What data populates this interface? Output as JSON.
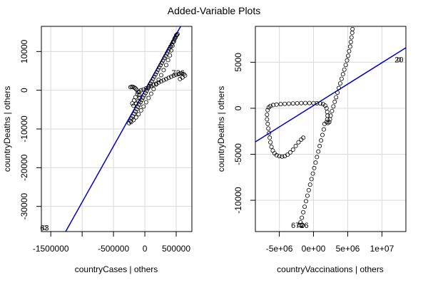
{
  "title": "Added-Variable Plots",
  "colors": {
    "fit_line": "#0000cc",
    "points": "#000000",
    "grid": "#d9d9d9",
    "frame": "#000000"
  },
  "chart_data": [
    {
      "type": "scatter",
      "xlabel": "countryCases | others",
      "ylabel": "countryDeaths | others",
      "xlim": [
        -1650000,
        750000
      ],
      "ylim": [
        -36500,
        16500
      ],
      "xticks": [
        -1500000,
        -1000000,
        -500000,
        0,
        500000
      ],
      "xtick_labels": [
        "-1500000",
        "",
        "-500000",
        "0",
        "500000"
      ],
      "yticks": [
        -30000,
        -20000,
        -10000,
        0,
        10000
      ],
      "ytick_labels": [
        "-30000",
        "-20000",
        "-10000",
        "0",
        "10000"
      ],
      "grid": true,
      "fit_line": {
        "slope": 0.0289,
        "intercept": 0
      },
      "point_labels": [
        {
          "text": "726",
          "x": 530000,
          "y": 4500
        },
        {
          "text": "63",
          "x": -1600000,
          "y": -35500
        }
      ],
      "points": [
        [
          -1600000,
          -35500
        ],
        [
          -250000,
          -8500
        ],
        [
          -230000,
          -7900
        ],
        [
          -210000,
          -7300
        ],
        [
          -190000,
          -6700
        ],
        [
          -170000,
          -6100
        ],
        [
          -150000,
          -5500
        ],
        [
          -130000,
          -4900
        ],
        [
          -110000,
          -4300
        ],
        [
          -90000,
          -3700
        ],
        [
          -70000,
          -3100
        ],
        [
          -50000,
          -2500
        ],
        [
          -30000,
          -1900
        ],
        [
          -10000,
          -1300
        ],
        [
          10000,
          -700
        ],
        [
          30000,
          -100
        ],
        [
          50000,
          500
        ],
        [
          70000,
          1100
        ],
        [
          90000,
          1700
        ],
        [
          110000,
          2300
        ],
        [
          130000,
          2900
        ],
        [
          150000,
          3500
        ],
        [
          170000,
          4100
        ],
        [
          190000,
          4700
        ],
        [
          210000,
          5300
        ],
        [
          230000,
          5900
        ],
        [
          250000,
          6500
        ],
        [
          270000,
          7100
        ],
        [
          290000,
          7700
        ],
        [
          310000,
          8300
        ],
        [
          330000,
          8900
        ],
        [
          350000,
          9500
        ],
        [
          370000,
          10100
        ],
        [
          390000,
          10700
        ],
        [
          410000,
          11300
        ],
        [
          430000,
          11900
        ],
        [
          450000,
          12500
        ],
        [
          470000,
          13100
        ],
        [
          490000,
          13700
        ],
        [
          510000,
          14300
        ],
        [
          -230000,
          800
        ],
        [
          -210000,
          900
        ],
        [
          -190000,
          850
        ],
        [
          -170000,
          700
        ],
        [
          -150000,
          500
        ],
        [
          -130000,
          100
        ],
        [
          -110000,
          -500
        ],
        [
          -90000,
          -1200
        ],
        [
          -80000,
          -2000
        ],
        [
          -100000,
          -2800
        ],
        [
          -140000,
          -3500
        ],
        [
          -180000,
          -4000
        ],
        [
          -200000,
          -3400
        ],
        [
          -170000,
          -2600
        ],
        [
          -150000,
          -1800
        ],
        [
          -120000,
          -1000
        ],
        [
          -90000,
          -400
        ],
        [
          -60000,
          0
        ],
        [
          -20000,
          200
        ],
        [
          20000,
          500
        ],
        [
          60000,
          800
        ],
        [
          100000,
          1100
        ],
        [
          140000,
          1400
        ],
        [
          180000,
          1700
        ],
        [
          220000,
          2000
        ],
        [
          260000,
          2300
        ],
        [
          300000,
          2600
        ],
        [
          340000,
          2900
        ],
        [
          380000,
          3200
        ],
        [
          420000,
          3500
        ],
        [
          460000,
          3800
        ],
        [
          500000,
          4000
        ],
        [
          540000,
          4200
        ],
        [
          580000,
          4400
        ],
        [
          620000,
          4200
        ],
        [
          640000,
          3800
        ],
        [
          600000,
          3300
        ],
        [
          560000,
          2900
        ],
        [
          520000,
          14500
        ],
        [
          500000,
          14200
        ],
        [
          480000,
          13500
        ],
        [
          460000,
          12600
        ],
        [
          440000,
          11500
        ],
        [
          420000,
          10300
        ],
        [
          400000,
          9000
        ],
        [
          370000,
          7800
        ],
        [
          340000,
          6500
        ],
        [
          300000,
          5200
        ],
        [
          260000,
          3900
        ],
        [
          220000,
          2700
        ],
        [
          180000,
          1500
        ],
        [
          140000,
          300
        ],
        [
          100000,
          -900
        ],
        [
          60000,
          -2000
        ],
        [
          20000,
          -3100
        ],
        [
          -20000,
          -4200
        ],
        [
          -60000,
          -5200
        ],
        [
          -100000,
          -6200
        ],
        [
          -140000,
          -7000
        ],
        [
          -180000,
          -7700
        ],
        [
          -220000,
          -8200
        ]
      ]
    },
    {
      "type": "scatter",
      "xlabel": "countryVaccinations | others",
      "ylabel": "countryDeaths | others",
      "xlim": [
        -8500000,
        13500000
      ],
      "ylim": [
        -13400,
        8900
      ],
      "xticks": [
        -5000000,
        0,
        5000000,
        10000000
      ],
      "xtick_labels": [
        "-5e+06",
        "0e+00",
        "5e+06",
        "1e+07"
      ],
      "yticks": [
        -10000,
        -5000,
        0,
        5000
      ],
      "ytick_labels": [
        "-10000",
        "-5000",
        "0",
        "5000"
      ],
      "grid": true,
      "fit_line": {
        "slope": 0.000465,
        "intercept": 300
      },
      "point_labels": [
        {
          "text": "20",
          "x": 12500000,
          "y": 5300
        },
        {
          "text": "6726",
          "x": -2000000,
          "y": -12700
        }
      ],
      "points": [
        [
          12500000,
          5300
        ],
        [
          -6800000,
          -1200
        ],
        [
          -6700000,
          -1700
        ],
        [
          -6600000,
          -2200
        ],
        [
          -6500000,
          -2700
        ],
        [
          -6400000,
          -3200
        ],
        [
          -6300000,
          -3700
        ],
        [
          -6150000,
          -4200
        ],
        [
          -5950000,
          -4600
        ],
        [
          -5700000,
          -4900
        ],
        [
          -5400000,
          -5100
        ],
        [
          -5000000,
          -5200
        ],
        [
          -4600000,
          -5250
        ],
        [
          -4200000,
          -5200
        ],
        [
          -3800000,
          -5050
        ],
        [
          -3400000,
          -4800
        ],
        [
          -3000000,
          -4500
        ],
        [
          -2600000,
          -4100
        ],
        [
          -2200000,
          -3700
        ],
        [
          -1800000,
          -3400
        ],
        [
          -1500000,
          -3200
        ],
        [
          -6800000,
          -700
        ],
        [
          -6700000,
          -200
        ],
        [
          -6550000,
          100
        ],
        [
          -6300000,
          250
        ],
        [
          -5900000,
          350
        ],
        [
          -5400000,
          400
        ],
        [
          -4800000,
          450
        ],
        [
          -4200000,
          480
        ],
        [
          -3600000,
          500
        ],
        [
          -3000000,
          520
        ],
        [
          -2400000,
          540
        ],
        [
          -1800000,
          560
        ],
        [
          -1200000,
          570
        ],
        [
          -600000,
          570
        ],
        [
          0,
          560
        ],
        [
          500000,
          550
        ],
        [
          1000000,
          520
        ],
        [
          1400000,
          450
        ],
        [
          1700000,
          300
        ],
        [
          1900000,
          0
        ],
        [
          2000000,
          -400
        ],
        [
          2050000,
          -800
        ],
        [
          2000000,
          -1200
        ],
        [
          1900000,
          -1500
        ],
        [
          2100000,
          -1600
        ],
        [
          2300000,
          -1500
        ],
        [
          2400000,
          -1200
        ],
        [
          2500000,
          -800
        ],
        [
          2700000,
          -300
        ],
        [
          2900000,
          200
        ],
        [
          3100000,
          700
        ],
        [
          3300000,
          1200
        ],
        [
          3500000,
          1700
        ],
        [
          3700000,
          2200
        ],
        [
          3900000,
          2700
        ],
        [
          4100000,
          3200
        ],
        [
          4300000,
          3700
        ],
        [
          4500000,
          4200
        ],
        [
          4700000,
          4700
        ],
        [
          4900000,
          5200
        ],
        [
          5050000,
          5700
        ],
        [
          5200000,
          6200
        ],
        [
          5350000,
          6700
        ],
        [
          5450000,
          7200
        ],
        [
          5550000,
          7700
        ],
        [
          5650000,
          8200
        ],
        [
          5700000,
          8600
        ],
        [
          1600000,
          -1700
        ],
        [
          1500000,
          -2300
        ],
        [
          1300000,
          -2900
        ],
        [
          1100000,
          -3500
        ],
        [
          900000,
          -4100
        ],
        [
          700000,
          -4700
        ],
        [
          500000,
          -5300
        ],
        [
          300000,
          -5900
        ],
        [
          100000,
          -6500
        ],
        [
          -100000,
          -7100
        ],
        [
          -300000,
          -7700
        ],
        [
          -500000,
          -8300
        ],
        [
          -700000,
          -8900
        ],
        [
          -900000,
          -9500
        ],
        [
          -1100000,
          -10100
        ],
        [
          -1300000,
          -10700
        ],
        [
          -1500000,
          -11300
        ],
        [
          -1700000,
          -11900
        ],
        [
          -1900000,
          -12400
        ],
        [
          -2100000,
          -12700
        ],
        [
          -1800000,
          -12700
        ],
        [
          -1600000,
          -12700
        ]
      ]
    }
  ]
}
